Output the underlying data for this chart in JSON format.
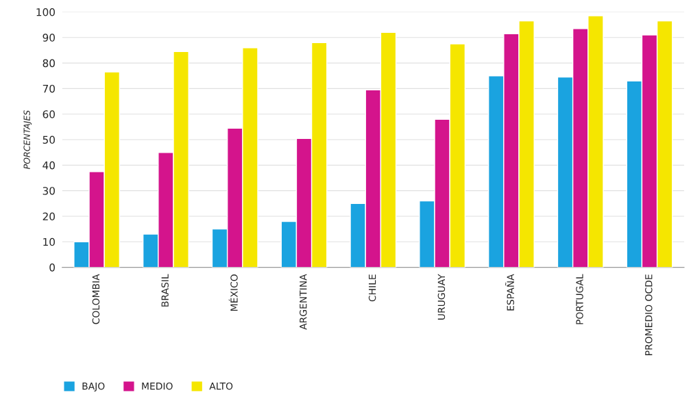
{
  "chart_data": {
    "type": "bar",
    "ylabel": "PORCENTAJES",
    "categories": [
      "COLOMBIA",
      "BRASIL",
      "MÉXICO",
      "ARGENTINA",
      "CHILE",
      "URUGUAY",
      "ESPAÑA",
      "PORTUGAL",
      "PROMEDIO OCDE"
    ],
    "series": [
      {
        "name": "BAJO",
        "color": "#1aa3e0",
        "values": [
          10,
          13,
          15,
          18,
          25,
          26,
          75,
          74.5,
          73
        ]
      },
      {
        "name": "MEDIO",
        "color": "#d4148c",
        "values": [
          37.5,
          45,
          54.5,
          50.5,
          69.5,
          58,
          91.5,
          93.5,
          91
        ]
      },
      {
        "name": "ALTO",
        "color": "#f5e600",
        "values": [
          76.5,
          84.5,
          86,
          88,
          92,
          87.5,
          96.5,
          98.5,
          96.5
        ]
      }
    ],
    "ylim": [
      0,
      100
    ],
    "yticks": [
      0,
      10,
      20,
      30,
      40,
      50,
      60,
      70,
      80,
      90,
      100
    ],
    "grid": "y",
    "legend": "bottom left"
  }
}
